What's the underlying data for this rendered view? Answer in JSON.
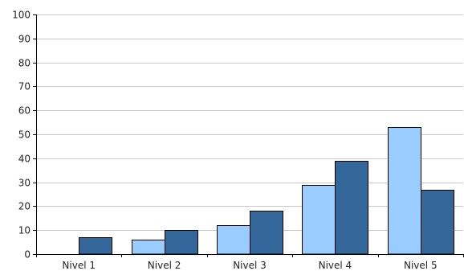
{
  "chart_data": {
    "type": "bar",
    "title": "",
    "xlabel": "",
    "ylabel": "",
    "categories": [
      "Nivel 1",
      "Nivel 2",
      "Nivel 3",
      "Nivel 4",
      "Nivel 5"
    ],
    "series": [
      {
        "color": "#99ccff",
        "values": [
          0,
          6,
          12,
          29,
          53
        ]
      },
      {
        "color": "#336699",
        "values": [
          7,
          10,
          18,
          39,
          27
        ]
      }
    ],
    "ylim": [
      0,
      100
    ],
    "yticks": [
      0,
      10,
      20,
      30,
      40,
      50,
      60,
      70,
      80,
      90,
      100
    ],
    "grid": true,
    "legend": "none"
  }
}
